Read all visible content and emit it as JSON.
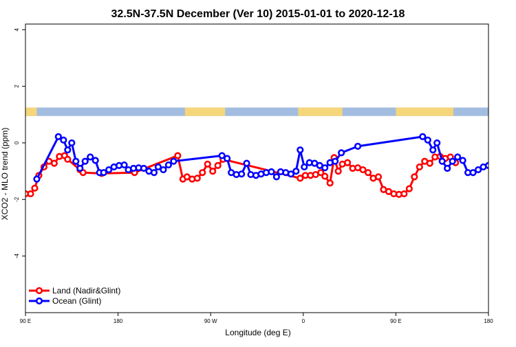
{
  "chart_data": {
    "type": "line",
    "title": "32.5N-37.5N December (Ver 10)   2015-01-01 to 2020-12-18",
    "xlabel": "Longitude (deg E)",
    "ylabel": "XCO2 - MLO trend (ppm)",
    "xlim": [
      90,
      540
    ],
    "ylim": [
      -6,
      4.2
    ],
    "yticks": [
      -4,
      -2,
      0,
      2,
      4
    ],
    "yticklabels": [
      "-4",
      "-2",
      "0",
      "2",
      "4"
    ],
    "xticks": [
      90,
      180,
      270,
      360,
      450,
      540
    ],
    "xticklabels": [
      "90 E",
      "180",
      "90 W",
      "0",
      "90 E",
      "180"
    ],
    "legend_position": "bottom-left",
    "land_mask": {
      "y_range": [
        0.95,
        1.25
      ],
      "ocean_color": "#a3bde0",
      "land_color": "#f5d67a",
      "land_segments": [
        [
          90,
          101
        ],
        [
          245,
          284
        ],
        [
          355,
          398
        ],
        [
          450,
          506
        ]
      ]
    },
    "series": [
      {
        "name": "Land (Nadir&Glint)",
        "color": "#ff0000",
        "points": [
          [
            90,
            -1.8
          ],
          [
            95,
            -1.8
          ],
          [
            99,
            -1.6
          ],
          [
            103,
            -1.15
          ],
          [
            108,
            -0.85
          ],
          [
            113,
            -0.65
          ],
          [
            118,
            -0.72
          ],
          [
            123,
            -0.48
          ],
          [
            128,
            -0.45
          ],
          [
            131,
            -0.58
          ],
          [
            143,
            -0.95
          ],
          [
            146,
            -1.05
          ],
          [
            164,
            -1.08
          ],
          [
            196,
            -1.05
          ],
          [
            238,
            -0.45
          ],
          [
            243,
            -1.28
          ],
          [
            247,
            -1.2
          ],
          [
            252,
            -1.28
          ],
          [
            257,
            -1.25
          ],
          [
            262,
            -1.05
          ],
          [
            267,
            -0.75
          ],
          [
            272,
            -1.0
          ],
          [
            277,
            -0.8
          ],
          [
            282,
            -0.58
          ],
          [
            357,
            -1.25
          ],
          [
            362,
            -1.15
          ],
          [
            367,
            -1.15
          ],
          [
            372,
            -1.12
          ],
          [
            377,
            -1.05
          ],
          [
            381,
            -1.18
          ],
          [
            386,
            -1.42
          ],
          [
            390,
            -0.52
          ],
          [
            394,
            -1.0
          ],
          [
            398,
            -0.75
          ],
          [
            403,
            -0.7
          ],
          [
            408,
            -0.9
          ],
          [
            413,
            -0.88
          ],
          [
            418,
            -0.95
          ],
          [
            423,
            -1.05
          ],
          [
            428,
            -1.25
          ],
          [
            433,
            -1.2
          ],
          [
            438,
            -1.65
          ],
          [
            443,
            -1.72
          ],
          [
            448,
            -1.8
          ],
          [
            453,
            -1.82
          ],
          [
            458,
            -1.8
          ],
          [
            463,
            -1.62
          ],
          [
            468,
            -1.2
          ],
          [
            473,
            -0.85
          ],
          [
            478,
            -0.65
          ],
          [
            483,
            -0.72
          ],
          [
            488,
            -0.5
          ],
          [
            493,
            -0.48
          ],
          [
            498,
            -0.55
          ],
          [
            503,
            -0.5
          ],
          [
            508,
            -0.7
          ]
        ]
      },
      {
        "name": "Ocean (Glint)",
        "color": "#0000ff",
        "points": [
          [
            101,
            -1.28
          ],
          [
            122,
            0.22
          ],
          [
            127,
            0.1
          ],
          [
            131,
            -0.25
          ],
          [
            135,
            0.0
          ],
          [
            139,
            -0.65
          ],
          [
            143,
            -0.9
          ],
          [
            148,
            -0.65
          ],
          [
            153,
            -0.5
          ],
          [
            158,
            -0.62
          ],
          [
            162,
            -1.05
          ],
          [
            166,
            -1.05
          ],
          [
            171,
            -0.95
          ],
          [
            176,
            -0.85
          ],
          [
            181,
            -0.8
          ],
          [
            186,
            -0.78
          ],
          [
            190,
            -0.95
          ],
          [
            195,
            -0.9
          ],
          [
            200,
            -0.88
          ],
          [
            205,
            -0.9
          ],
          [
            210,
            -1.0
          ],
          [
            215,
            -1.05
          ],
          [
            219,
            -0.85
          ],
          [
            224,
            -0.95
          ],
          [
            229,
            -0.78
          ],
          [
            234,
            -0.65
          ],
          [
            281,
            -0.45
          ],
          [
            286,
            -0.55
          ],
          [
            290,
            -1.05
          ],
          [
            295,
            -1.12
          ],
          [
            300,
            -1.1
          ],
          [
            305,
            -0.72
          ],
          [
            309,
            -1.12
          ],
          [
            314,
            -1.15
          ],
          [
            319,
            -1.1
          ],
          [
            324,
            -1.05
          ],
          [
            329,
            -1.02
          ],
          [
            334,
            -1.2
          ],
          [
            338,
            -1.02
          ],
          [
            343,
            -1.05
          ],
          [
            348,
            -1.1
          ],
          [
            353,
            -1.0
          ],
          [
            357,
            -0.25
          ],
          [
            361,
            -0.85
          ],
          [
            366,
            -0.7
          ],
          [
            371,
            -0.72
          ],
          [
            376,
            -0.8
          ],
          [
            381,
            -0.88
          ],
          [
            386,
            -0.7
          ],
          [
            391,
            -0.65
          ],
          [
            397,
            -0.35
          ],
          [
            413,
            -0.12
          ],
          [
            476,
            0.22
          ],
          [
            481,
            0.1
          ],
          [
            486,
            -0.25
          ],
          [
            490,
            0.0
          ],
          [
            495,
            -0.65
          ],
          [
            500,
            -0.9
          ],
          [
            505,
            -0.65
          ],
          [
            510,
            -0.5
          ],
          [
            515,
            -0.62
          ],
          [
            520,
            -1.05
          ],
          [
            525,
            -1.05
          ],
          [
            530,
            -0.95
          ],
          [
            535,
            -0.85
          ],
          [
            540,
            -0.8
          ]
        ]
      }
    ]
  }
}
